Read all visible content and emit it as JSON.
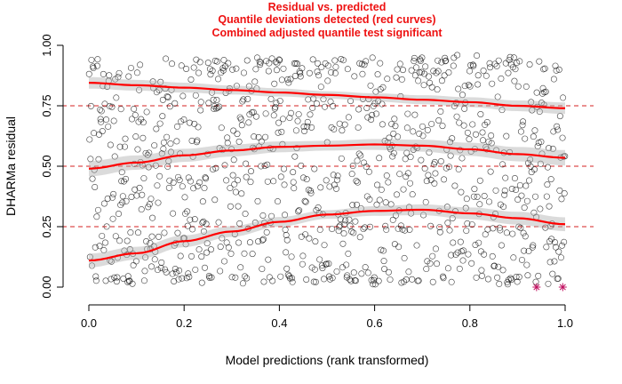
{
  "chart_data": {
    "type": "scatter",
    "title_lines": [
      "Residual vs. predicted",
      "Quantile deviations detected (red curves)",
      "Combined adjusted quantile test significant"
    ],
    "xlabel": "Model predictions (rank transformed)",
    "ylabel": "DHARMa residual",
    "xlim": [
      0.0,
      1.0
    ],
    "ylim": [
      0.0,
      1.0
    ],
    "x_ticks": [
      "0.0",
      "0.2",
      "0.4",
      "0.6",
      "0.8",
      "1.0"
    ],
    "y_ticks": [
      "0.00",
      "0.25",
      "0.50",
      "0.75",
      "1.00"
    ],
    "reference_lines": [
      0.25,
      0.5,
      0.75
    ],
    "point_count": 1000,
    "quantile_curves": [
      {
        "quantile": 0.25,
        "x": [
          0,
          0.1,
          0.2,
          0.3,
          0.4,
          0.5,
          0.6,
          0.7,
          0.8,
          0.9,
          1.0
        ],
        "y": [
          0.11,
          0.14,
          0.19,
          0.23,
          0.27,
          0.3,
          0.315,
          0.32,
          0.305,
          0.285,
          0.26
        ],
        "band": 0.018
      },
      {
        "quantile": 0.5,
        "x": [
          0,
          0.1,
          0.2,
          0.3,
          0.4,
          0.5,
          0.6,
          0.7,
          0.8,
          0.9,
          1.0
        ],
        "y": [
          0.49,
          0.515,
          0.545,
          0.565,
          0.58,
          0.585,
          0.59,
          0.585,
          0.57,
          0.55,
          0.535
        ],
        "band": 0.02
      },
      {
        "quantile": 0.75,
        "x": [
          0,
          0.1,
          0.2,
          0.3,
          0.4,
          0.5,
          0.6,
          0.7,
          0.8,
          0.9,
          1.0
        ],
        "y": [
          0.845,
          0.835,
          0.825,
          0.815,
          0.805,
          0.795,
          0.785,
          0.775,
          0.765,
          0.75,
          0.74
        ],
        "band": 0.015
      }
    ],
    "outliers": [
      {
        "x": 0.94,
        "y": 0.0
      },
      {
        "x": 0.995,
        "y": 0.0
      }
    ],
    "colors": {
      "title": "#ee1111",
      "curve": "#ff0000",
      "reference": "#d62020",
      "points": "#000000",
      "outlier": "#c01060",
      "band": "#b0b0b0"
    }
  }
}
